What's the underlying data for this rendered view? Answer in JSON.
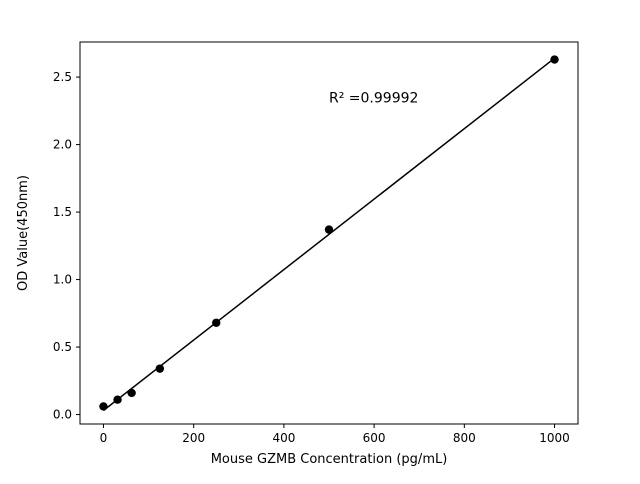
{
  "figure": {
    "background": "#ffffff"
  },
  "chart_data": {
    "type": "scatter",
    "title": "",
    "xlabel": "Mouse GZMB Concentration (pg/mL)",
    "ylabel": "OD Value(450nm)",
    "x": [
      0,
      31.25,
      62.5,
      125,
      250,
      500,
      1000
    ],
    "y": [
      0.06,
      0.11,
      0.16,
      0.34,
      0.68,
      1.37,
      2.63
    ],
    "fit_line": {
      "x": [
        0,
        1000
      ],
      "y": [
        0.03,
        2.64
      ]
    },
    "xticks": [
      "0",
      "200",
      "400",
      "600",
      "800",
      "1000"
    ],
    "yticks": [
      "0.0",
      "0.5",
      "1.0",
      "1.5",
      "2.0",
      "2.5"
    ],
    "xlim": [
      -52,
      1052
    ],
    "ylim": [
      -0.07,
      2.76
    ],
    "annotation": {
      "text": "R² =0.99992",
      "x": 500,
      "y": 2.31
    },
    "marker_color": "#000000",
    "line_color": "#000000",
    "grid": false,
    "legend": null
  }
}
